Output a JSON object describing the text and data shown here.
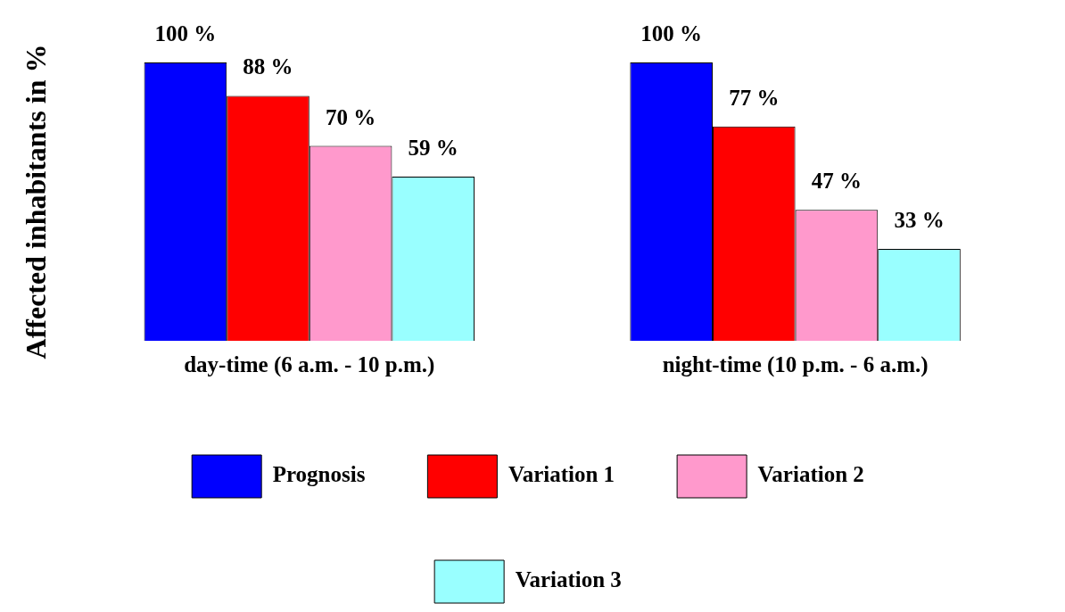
{
  "chart_data": {
    "type": "bar",
    "ylabel": "Affected inhabitants in %",
    "categories": [
      "day-time (6 a.m. - 10 p.m.)",
      "night-time (10 p.m. - 6 a.m.)"
    ],
    "series": [
      {
        "name": "Prognosis",
        "color": "#0000ff",
        "values": [
          100,
          100
        ],
        "value_labels": [
          "100 %",
          "100 %"
        ]
      },
      {
        "name": "Variation 1",
        "color": "#ff0000",
        "values": [
          88,
          77
        ],
        "value_labels": [
          "88 %",
          "77 %"
        ]
      },
      {
        "name": "Variation 2",
        "color": "#ff99cc",
        "values": [
          70,
          47
        ],
        "value_labels": [
          "70 %",
          "47 %"
        ]
      },
      {
        "name": "Variation 3",
        "color": "#99ffff",
        "values": [
          59,
          33
        ],
        "value_labels": [
          "59 %",
          "33 %"
        ]
      }
    ],
    "ylim": [
      0,
      100
    ],
    "tick_labels": "x",
    "grid": false,
    "legend": "bottom"
  }
}
